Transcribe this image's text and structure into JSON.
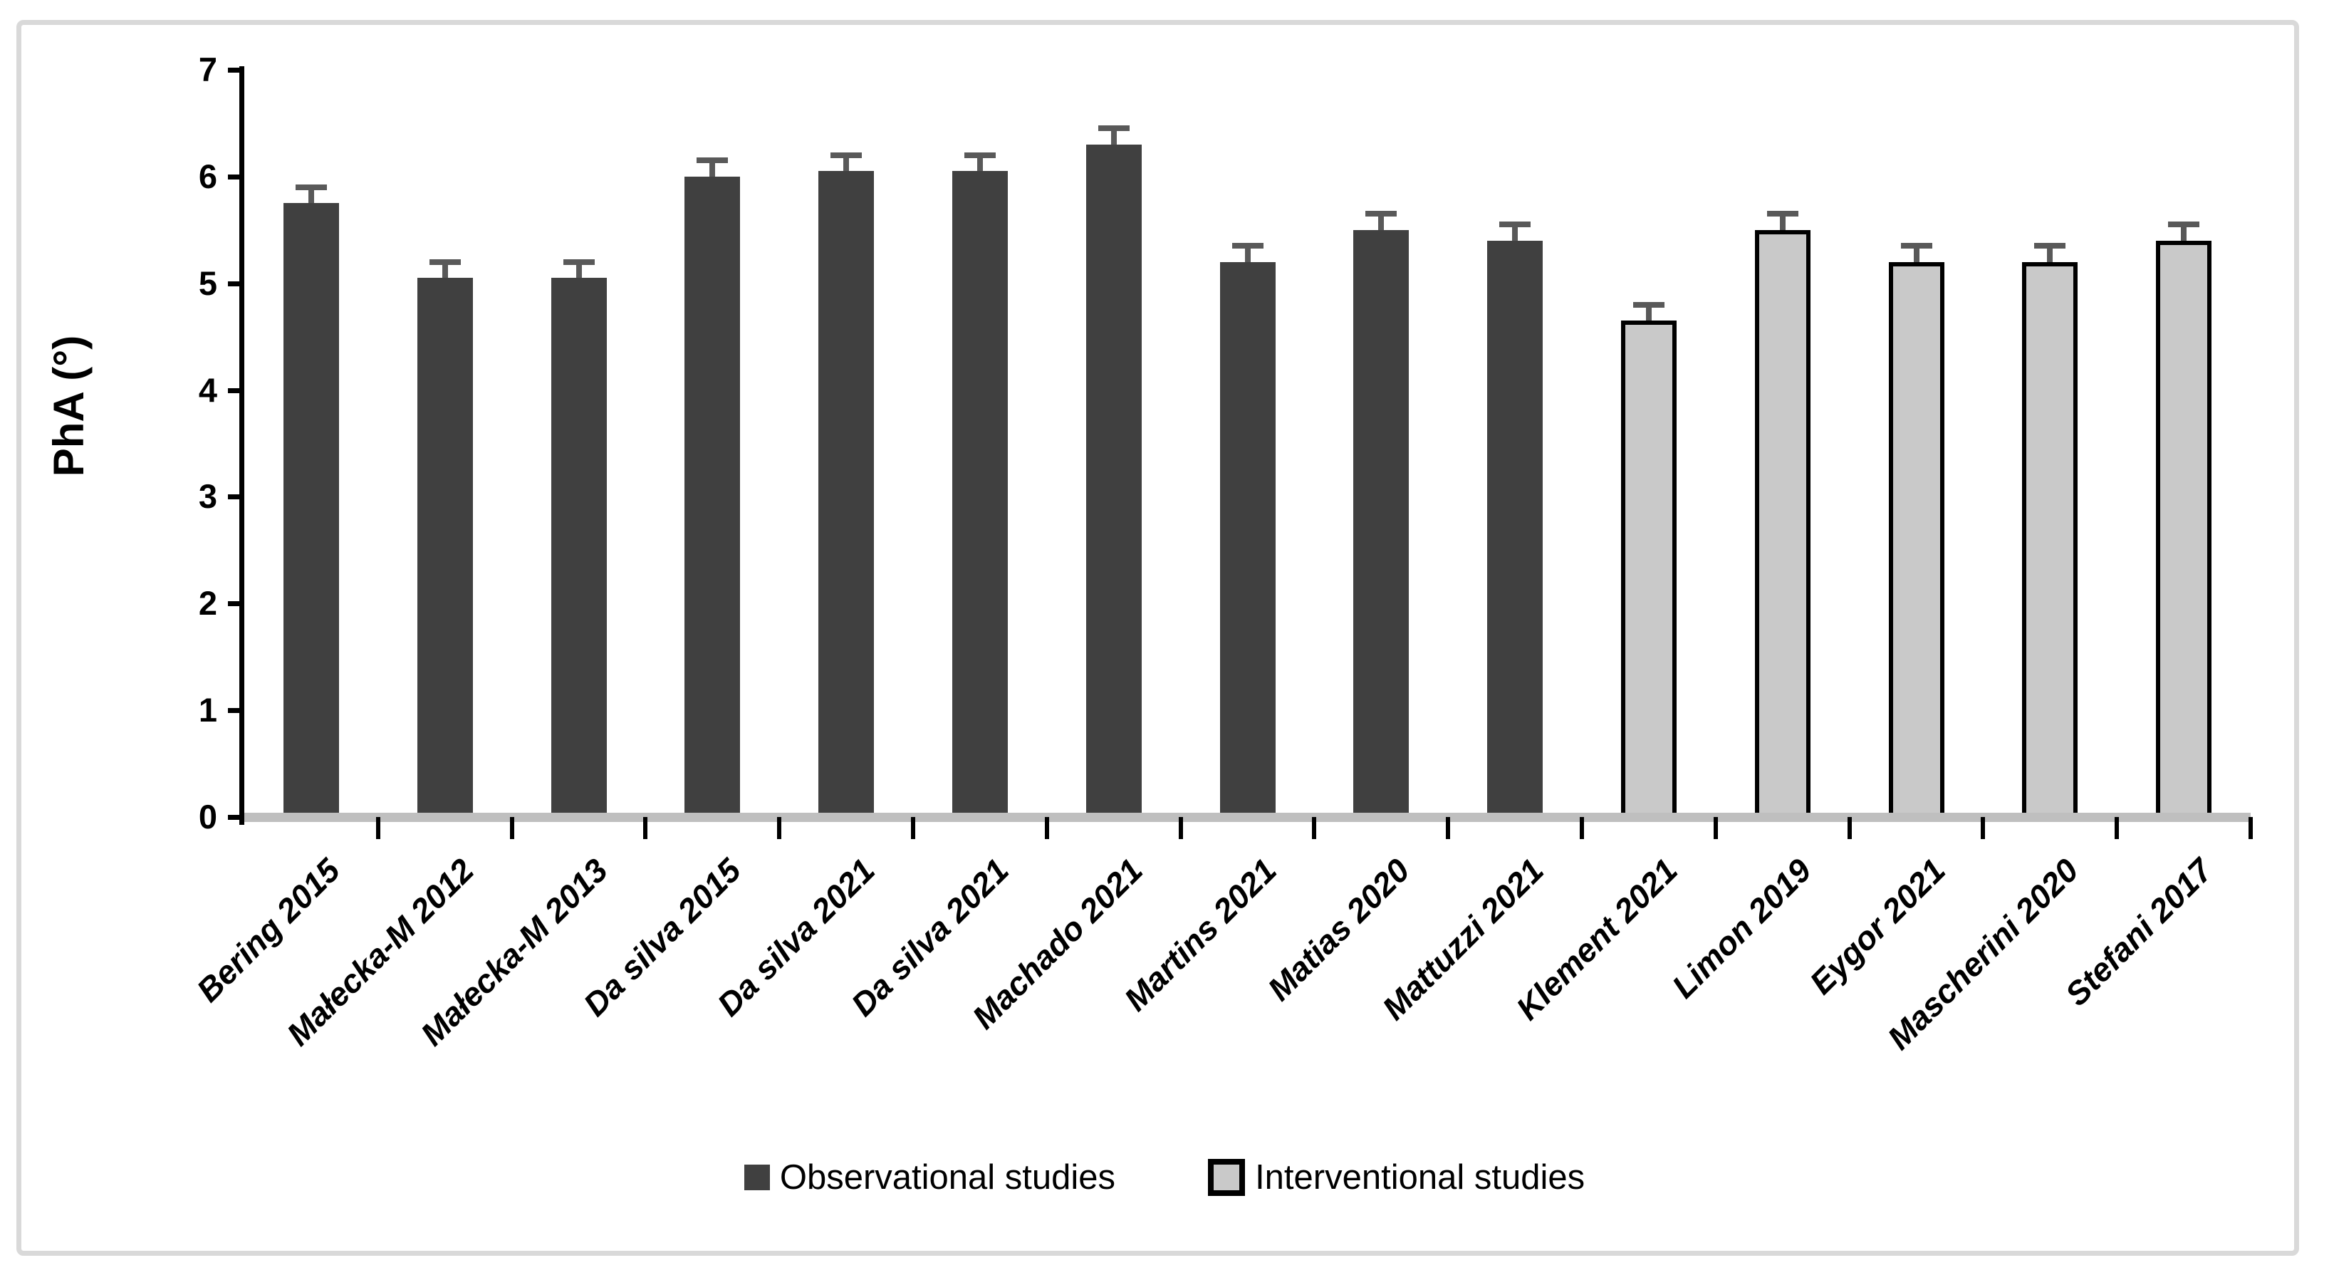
{
  "figure": {
    "background_color": "#ffffff",
    "border_color": "#d9d9d9"
  },
  "chart_data": {
    "type": "bar",
    "title": "",
    "xlabel": "",
    "ylabel": "PhA (°)",
    "ylim": [
      0,
      7
    ],
    "yticks": [
      0,
      1,
      2,
      3,
      4,
      5,
      6,
      7
    ],
    "grid": false,
    "legend_position": "bottom-center",
    "categories": [
      "Bering 2015",
      "Małecka-M 2012",
      "Małecka-M 2013",
      "Da silva 2015",
      "Da silva 2021",
      "Da silva 2021",
      "Machado 2021",
      "Martins 2021",
      "Matias 2020",
      "Mattuzzi 2021",
      "Klement 2021",
      "Limon 2019",
      "Eygor 2021",
      "Mascherini 2020",
      "Stefani 2017"
    ],
    "series": [
      {
        "name": "Observational studies",
        "color": "#404040",
        "border_color": null,
        "values": [
          5.75,
          5.05,
          5.05,
          6.0,
          6.05,
          6.05,
          6.3,
          5.2,
          5.5,
          5.4,
          null,
          null,
          null,
          null,
          null
        ]
      },
      {
        "name": "Interventional studies",
        "color": "#c9c9c9",
        "border_color": "#000000",
        "values": [
          null,
          null,
          null,
          null,
          null,
          null,
          null,
          null,
          null,
          null,
          4.65,
          5.5,
          5.2,
          5.2,
          5.4
        ]
      }
    ],
    "error_bars": {
      "direction": "plus",
      "color": "#595959",
      "values": [
        0.15,
        0.15,
        0.15,
        0.15,
        0.15,
        0.15,
        0.15,
        0.15,
        0.15,
        0.15,
        0.15,
        0.15,
        0.15,
        0.15,
        0.15
      ]
    },
    "axis_color": "#000000",
    "baseline_band_color": "#bfbfbf"
  },
  "legend": {
    "items": [
      {
        "label": "Observational studies",
        "color": "#404040",
        "border_color": null
      },
      {
        "label": "Interventional studies",
        "color": "#c9c9c9",
        "border_color": "#000000"
      }
    ]
  }
}
